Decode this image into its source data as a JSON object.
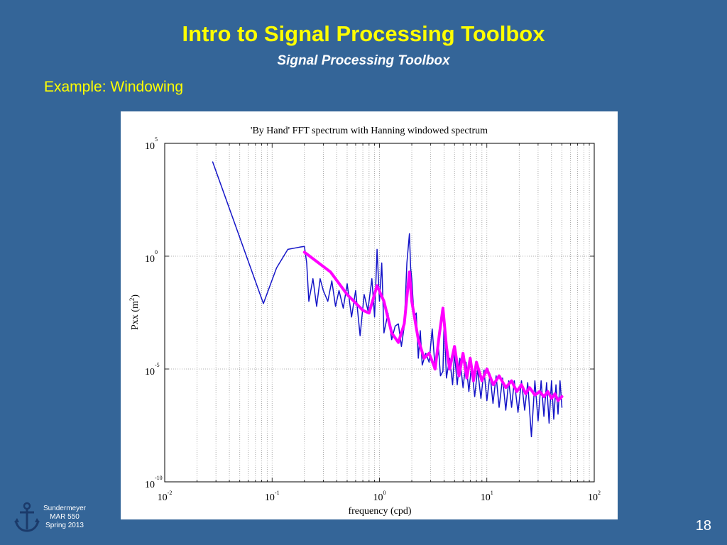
{
  "slide": {
    "title": "Intro to Signal Processing Toolbox",
    "subtitle": "Signal Processing Toolbox",
    "heading": "Example: Windowing",
    "footer_lines": [
      "Sundermeyer",
      "MAR 550",
      "Spring 2013"
    ],
    "page_number": "18",
    "logo_icon": "anchor-icon",
    "colors": {
      "background": "#346598",
      "title": "#FFFF00",
      "heading": "#FFFF00",
      "text": "#FFFFFF"
    }
  },
  "chart_data": {
    "type": "line",
    "title": "'By Hand' FFT spectrum with Hanning windowed spectrum",
    "xlabel": "frequency (cpd)",
    "ylabel_base": "Pxx (m",
    "ylabel_sup": "2",
    "ylabel_close": ")",
    "xscale": "log",
    "yscale": "log",
    "xlim": [
      0.01,
      100
    ],
    "ylim": [
      1e-10,
      100000
    ],
    "grid": "vertical-dotted",
    "x_tick_labels": [
      {
        "value": 0.01,
        "base": "10",
        "exp": "-2"
      },
      {
        "value": 0.1,
        "base": "10",
        "exp": "-1"
      },
      {
        "value": 1,
        "base": "10",
        "exp": "0"
      },
      {
        "value": 10,
        "base": "10",
        "exp": "1"
      },
      {
        "value": 100,
        "base": "10",
        "exp": "2"
      }
    ],
    "y_tick_labels": [
      {
        "value": 100000,
        "base": "10",
        "exp": "5"
      },
      {
        "value": 1,
        "base": "10",
        "exp": "0"
      },
      {
        "value": 1e-05,
        "base": "10",
        "exp": "-5"
      },
      {
        "value": 1e-10,
        "base": "10",
        "exp": "-10"
      }
    ],
    "series": [
      {
        "color": "#1515C8",
        "x": [
          0.028,
          0.083,
          0.11,
          0.14,
          0.18,
          0.2,
          0.21,
          0.22,
          0.24,
          0.26,
          0.28,
          0.3,
          0.33,
          0.36,
          0.39,
          0.42,
          0.46,
          0.5,
          0.55,
          0.6,
          0.66,
          0.72,
          0.78,
          0.85,
          0.9,
          0.95,
          1.0,
          1.05,
          1.1,
          1.2,
          1.3,
          1.4,
          1.5,
          1.6,
          1.7,
          1.8,
          1.9,
          1.95,
          2.0,
          2.1,
          2.2,
          2.3,
          2.4,
          2.5,
          2.7,
          2.9,
          3.1,
          3.3,
          3.5,
          3.7,
          3.9,
          4.0,
          4.2,
          4.5,
          4.8,
          5.0,
          5.3,
          5.6,
          6.0,
          6.4,
          6.8,
          7.2,
          7.7,
          8.2,
          8.8,
          9.4,
          10.0,
          10.7,
          11.4,
          12.2,
          13.0,
          14.0,
          15.0,
          16.0,
          17.0,
          18.0,
          19.5,
          21.0,
          22.5,
          24.0,
          26.0,
          28.0,
          30.0,
          32.0,
          34.0,
          36.0,
          38.0,
          40.0,
          42.0,
          44.0,
          46.0,
          48.0,
          50.0
        ],
        "y": [
          15000,
          0.008,
          0.3,
          2,
          2.5,
          2.7,
          0.5,
          0.01,
          0.1,
          0.006,
          0.1,
          0.03,
          0.01,
          0.08,
          0.006,
          0.03,
          0.005,
          0.06,
          0.002,
          0.03,
          0.0003,
          0.02,
          0.004,
          0.1,
          0.002,
          2.0,
          0.01,
          0.5,
          0.0004,
          0.003,
          0.0002,
          0.0008,
          0.001,
          0.0001,
          0.0008,
          0.5,
          10,
          0.3,
          0.1,
          0.002,
          0.003,
          3e-05,
          0.0005,
          1.5e-05,
          5e-05,
          2e-05,
          0.0006,
          1e-05,
          0.0002,
          5e-06,
          8e-06,
          0.0015,
          4e-06,
          3e-05,
          2e-06,
          5e-05,
          2e-06,
          3e-05,
          1.5e-06,
          2e-05,
          1e-06,
          1.5e-05,
          6e-07,
          1e-05,
          5e-07,
          9e-06,
          4e-07,
          6e-06,
          3e-07,
          5e-06,
          2e-07,
          4e-06,
          1.5e-07,
          3e-06,
          2e-07,
          3e-06,
          1.2e-07,
          3e-06,
          1.5e-07,
          2.5e-06,
          1e-08,
          3e-06,
          5e-08,
          3e-06,
          8e-08,
          2.5e-06,
          4e-08,
          3e-06,
          6e-08,
          2e-06,
          1e-07,
          3e-06,
          2e-07
        ]
      },
      {
        "color": "#FF00FF",
        "x": [
          0.2,
          0.35,
          0.5,
          0.7,
          0.8,
          0.95,
          1.1,
          1.3,
          1.5,
          1.7,
          1.9,
          2.0,
          2.3,
          2.6,
          2.9,
          3.3,
          3.6,
          3.9,
          4.2,
          4.5,
          5.0,
          5.5,
          6.0,
          6.5,
          7.0,
          7.5,
          8.0,
          9.0,
          10.0,
          11.5,
          13.0,
          15.0,
          17.0,
          19.0,
          21.0,
          23.0,
          25.0,
          28.0,
          31.0,
          34.0,
          37.0,
          40.0,
          43.0,
          46.0,
          50.0
        ],
        "y": [
          1.5,
          0.2,
          0.02,
          0.004,
          0.003,
          0.05,
          0.01,
          0.0004,
          0.00015,
          0.001,
          0.2,
          0.01,
          0.0002,
          3e-05,
          5e-05,
          1e-05,
          0.0003,
          0.005,
          0.0001,
          1e-05,
          0.0001,
          5e-06,
          5e-05,
          4e-06,
          3e-05,
          3e-06,
          2e-05,
          3e-06,
          1e-05,
          2e-06,
          5e-06,
          1.5e-06,
          3e-06,
          1e-06,
          2e-06,
          8e-07,
          1.5e-06,
          7e-07,
          1e-06,
          6e-07,
          1e-06,
          5e-07,
          8e-07,
          4e-07,
          6e-07
        ]
      }
    ]
  }
}
